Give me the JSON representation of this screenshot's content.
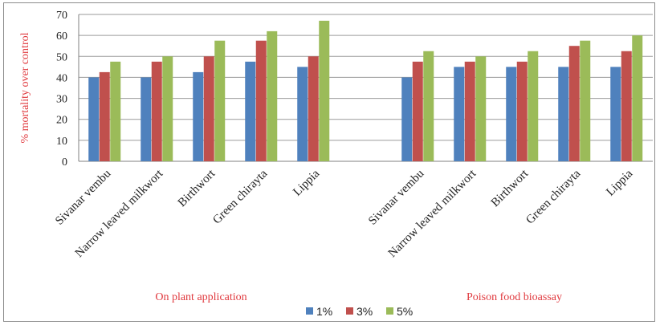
{
  "chart_data": {
    "type": "bar",
    "ylabel": "% mortality over control",
    "ylim": [
      0,
      70
    ],
    "yticks": [
      0,
      10,
      20,
      30,
      40,
      50,
      60,
      70
    ],
    "grid": true,
    "legend_position": "bottom",
    "groups": [
      {
        "label": "On plant application",
        "categories": [
          "Sivanar vembu",
          "Narrow leaved milkwort",
          "Birthwort",
          "Green chirayta",
          "Lippia"
        ]
      },
      {
        "label": "Poison food bioassay",
        "categories": [
          "Sivanar vembu",
          "Narrow leaved milkwort",
          "Birthwort",
          "Green chirayta",
          "Lippia"
        ]
      }
    ],
    "series": [
      {
        "name": "1%",
        "color": "#4f81bd",
        "values": [
          40,
          40,
          42.5,
          47.5,
          45,
          40,
          45,
          45,
          45,
          45
        ]
      },
      {
        "name": "3%",
        "color": "#c0504d",
        "values": [
          42.5,
          47.5,
          50,
          57.5,
          50,
          47.5,
          47.5,
          47.5,
          55,
          52.5
        ]
      },
      {
        "name": "5%",
        "color": "#9bbb59",
        "values": [
          47.5,
          50,
          57.5,
          62,
          67,
          52.5,
          50,
          52.5,
          57.5,
          60
        ]
      }
    ]
  }
}
